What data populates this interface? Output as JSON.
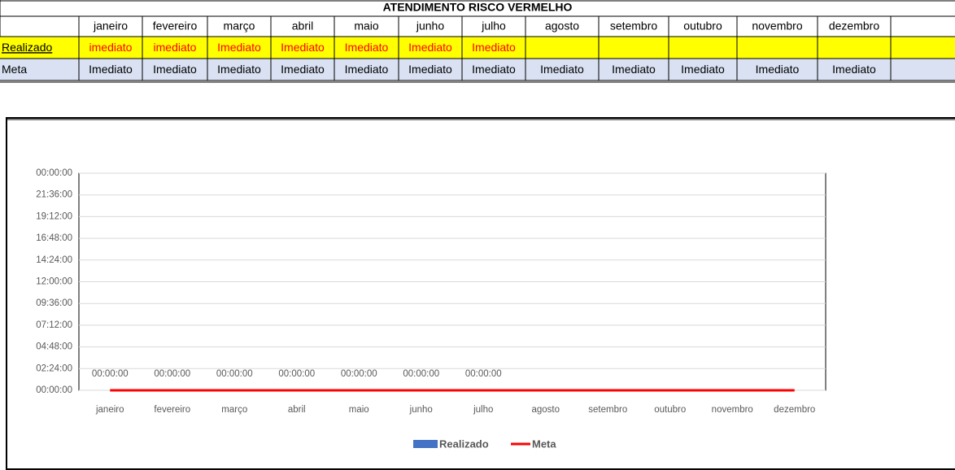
{
  "table": {
    "title": "ATENDIMENTO RISCO VERMELHO",
    "months": [
      "janeiro",
      "fevereiro",
      "março",
      "abril",
      "maio",
      "junho",
      "julho",
      "agosto",
      "setembro",
      "outubro",
      "novembro",
      "dezembro"
    ],
    "rows": [
      {
        "label": "Realizado",
        "cells": [
          "imediato",
          "imediato",
          "Imediato",
          "Imediato",
          "Imediato",
          "Imediato",
          "Imediato"
        ]
      },
      {
        "label": "Meta",
        "cells": [
          "Imediato",
          "Imediato",
          "Imediato",
          "Imediato",
          "Imediato",
          "Imediato",
          "Imediato",
          "Imediato",
          "Imediato",
          "Imediato",
          "Imediato",
          "Imediato"
        ]
      }
    ]
  },
  "chart_data": {
    "type": "bar",
    "categories": [
      "janeiro",
      "fevereiro",
      "março",
      "abril",
      "maio",
      "junho",
      "julho",
      "agosto",
      "setembro",
      "outubro",
      "novembro",
      "dezembro"
    ],
    "series": [
      {
        "name": "Realizado",
        "type": "bar",
        "color": "#4472c4",
        "values": [
          0,
          0,
          0,
          0,
          0,
          0,
          0,
          null,
          null,
          null,
          null,
          null
        ],
        "value_labels": [
          "00:00:00",
          "00:00:00",
          "00:00:00",
          "00:00:00",
          "00:00:00",
          "00:00:00",
          "00:00:00",
          null,
          null,
          null,
          null,
          null
        ]
      },
      {
        "name": "Meta",
        "type": "line",
        "color": "#ff0000",
        "values": [
          0,
          0,
          0,
          0,
          0,
          0,
          0,
          0,
          0,
          0,
          0,
          0
        ]
      }
    ],
    "ylim": [
      0,
      1
    ],
    "yticks": [
      {
        "value": 0,
        "label": "00:00:00"
      },
      {
        "value": 0.1,
        "label": "02:24:00"
      },
      {
        "value": 0.2,
        "label": "04:48:00"
      },
      {
        "value": 0.3,
        "label": "07:12:00"
      },
      {
        "value": 0.4,
        "label": "09:36:00"
      },
      {
        "value": 0.5,
        "label": "12:00:00"
      },
      {
        "value": 0.6,
        "label": "14:24:00"
      },
      {
        "value": 0.7,
        "label": "16:48:00"
      },
      {
        "value": 0.8,
        "label": "19:12:00"
      },
      {
        "value": 0.9,
        "label": "21:36:00"
      },
      {
        "value": 1,
        "label": "00:00:00"
      }
    ],
    "grid": true,
    "legend": "bottom"
  }
}
